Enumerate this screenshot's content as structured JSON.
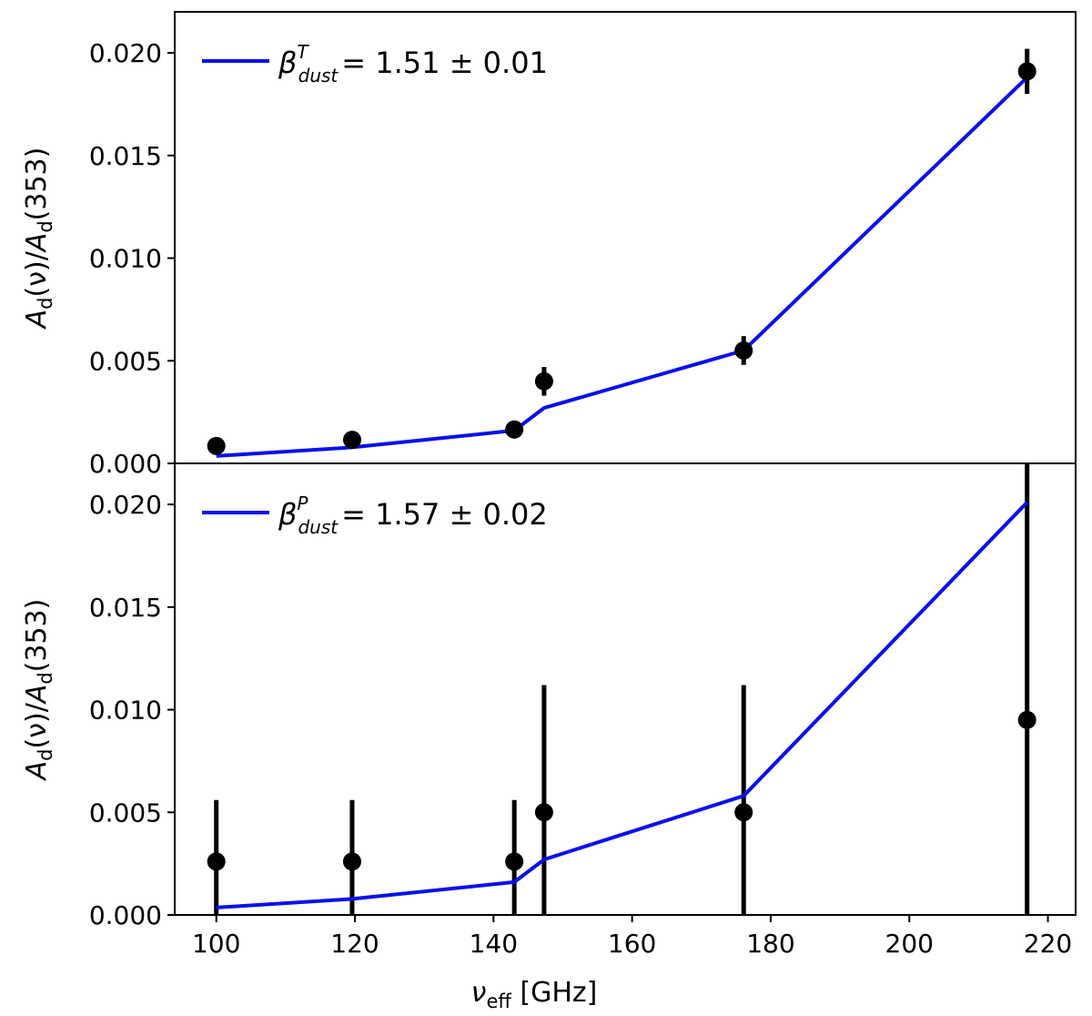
{
  "chart_data": [
    {
      "type": "line",
      "panel": "top",
      "x": [
        100,
        119.6,
        143,
        147.3,
        176.1,
        217
      ],
      "model": [
        0.00036,
        0.00078,
        0.0016,
        0.0027,
        0.0055,
        0.0188
      ],
      "points": [
        {
          "x": 100,
          "y": 0.00085,
          "err": 0.0001
        },
        {
          "x": 119.6,
          "y": 0.00115,
          "err": 0.0001
        },
        {
          "x": 143,
          "y": 0.00165,
          "err": 0.0001
        },
        {
          "x": 147.3,
          "y": 0.004,
          "err": 0.0007
        },
        {
          "x": 176.1,
          "y": 0.0055,
          "err": 0.0007
        },
        {
          "x": 217,
          "y": 0.0191,
          "err": 0.0011
        }
      ],
      "legend": {
        "symbol": "β",
        "sup": "T",
        "sub": "dust",
        "value": "= 1.51 ± 0.01"
      },
      "ylabel": {
        "a": "A",
        "sub": "d",
        "mid": "(ν)/",
        "b": "A",
        "sub2": "d",
        "end": "(353)"
      },
      "ylim": [
        0,
        0.022
      ],
      "yticks": [
        "0.000",
        "0.005",
        "0.010",
        "0.015",
        "0.020"
      ],
      "line_color": "#0a10ee",
      "marker_color": "#000000"
    },
    {
      "type": "line",
      "panel": "bottom",
      "x": [
        100,
        119.6,
        143,
        147.3,
        176.1,
        217
      ],
      "model": [
        0.00036,
        0.00078,
        0.0016,
        0.0027,
        0.0058,
        0.0201
      ],
      "points": [
        {
          "x": 100,
          "y": 0.0026,
          "err": 0.003
        },
        {
          "x": 119.6,
          "y": 0.0026,
          "err": 0.003
        },
        {
          "x": 143,
          "y": 0.0026,
          "err": 0.003
        },
        {
          "x": 147.3,
          "y": 0.005,
          "err": 0.0062
        },
        {
          "x": 176.1,
          "y": 0.005,
          "err": 0.0062
        },
        {
          "x": 217,
          "y": 0.0095,
          "err": 0.015
        }
      ],
      "legend": {
        "symbol": "β",
        "sup": "P",
        "sub": "dust",
        "value": "= 1.57 ± 0.02"
      },
      "ylabel": {
        "a": "A",
        "sub": "d",
        "mid": "(ν)/",
        "b": "A",
        "sub2": "d",
        "end": "(353)"
      },
      "ylim": [
        0,
        0.022
      ],
      "yticks": [
        "0.000",
        "0.005",
        "0.010",
        "0.015",
        "0.020"
      ],
      "xlim": [
        94,
        224
      ],
      "xticks": [
        "100",
        "120",
        "140",
        "160",
        "180",
        "200",
        "220"
      ],
      "xlabel": {
        "main": "ν",
        "sub": "eff",
        "rest": " [GHz]"
      },
      "line_color": "#0a10ee",
      "marker_color": "#000000"
    }
  ]
}
